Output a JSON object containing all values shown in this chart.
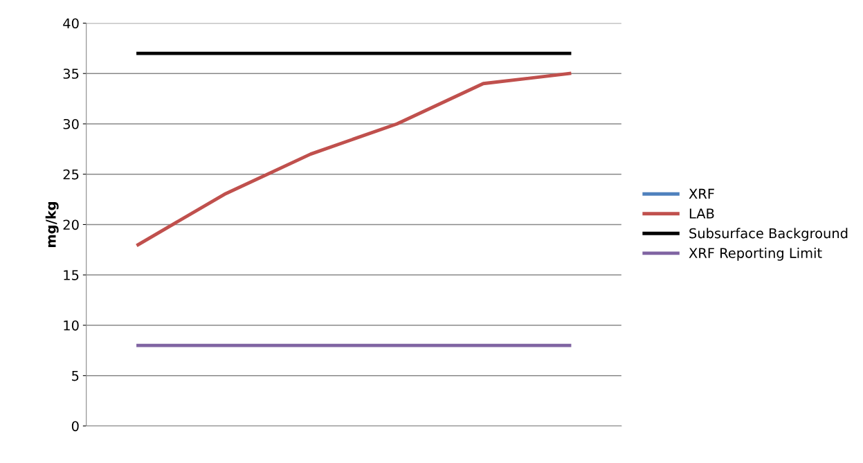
{
  "chart_data": {
    "type": "line",
    "ylabel": "mg/kg",
    "categories": [
      null,
      null,
      null,
      null,
      null,
      null
    ],
    "series": [
      {
        "name": "XRF",
        "color": "#4f81bd",
        "values": [
          null,
          null,
          null,
          null,
          null,
          null
        ]
      },
      {
        "name": "LAB",
        "color": "#c0504d",
        "values": [
          18,
          23,
          27,
          30,
          34,
          35
        ]
      },
      {
        "name": "Subsurface Background",
        "color": "#000000",
        "values": [
          37,
          37,
          37,
          37,
          37,
          37
        ]
      },
      {
        "name": "XRF Reporting Limit",
        "color": "#8064a2",
        "values": [
          8,
          8,
          8,
          8,
          8,
          8
        ]
      }
    ],
    "ylim": [
      0,
      40
    ],
    "yticks": [
      0,
      5,
      10,
      15,
      20,
      25,
      30,
      35,
      40
    ],
    "grid": "y",
    "legend": "right",
    "tick_labels": "y",
    "marker": "none",
    "line_style": "solid"
  }
}
